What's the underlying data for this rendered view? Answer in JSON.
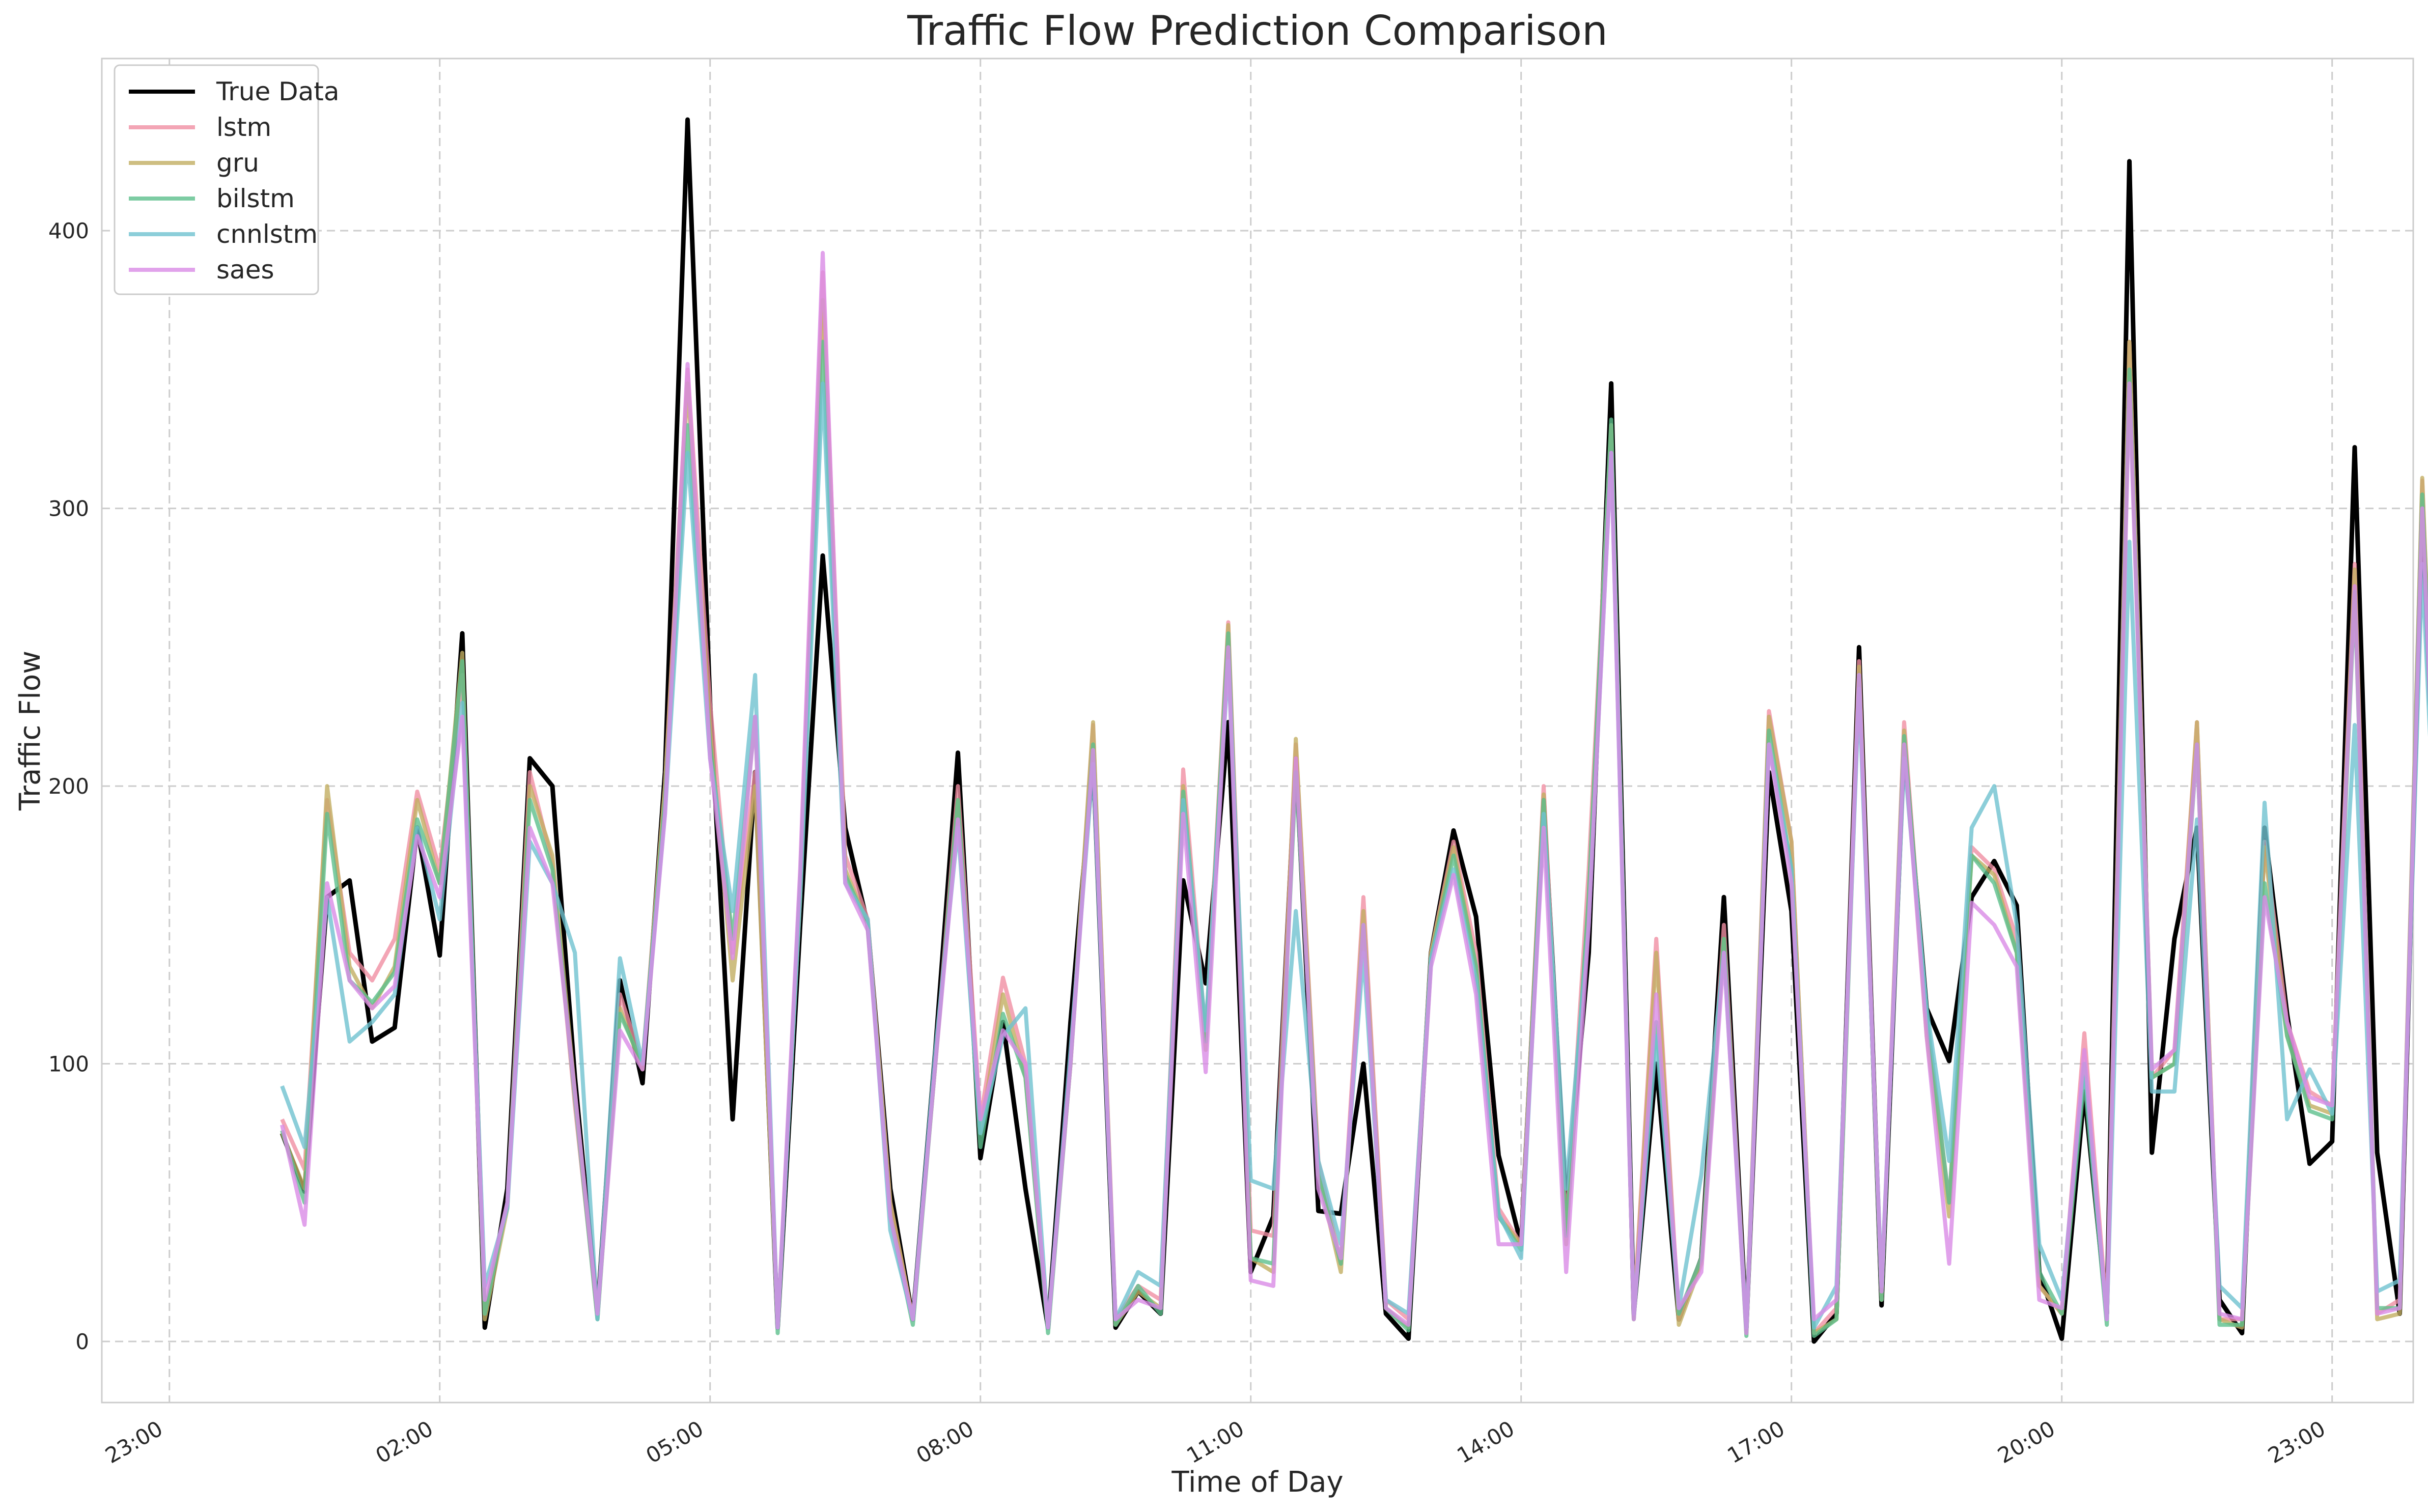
{
  "chart_data": {
    "type": "line",
    "title": "Traffic Flow Prediction Comparison",
    "xlabel": "Time of Day",
    "ylabel": "Traffic Flow",
    "xlim": [
      -0.75,
      24.9
    ],
    "ylim": [
      -22,
      462
    ],
    "x_ticks": [
      {
        "value": 0,
        "label": "23:00"
      },
      {
        "value": 3,
        "label": "02:00"
      },
      {
        "value": 6,
        "label": "05:00"
      },
      {
        "value": 9,
        "label": "08:00"
      },
      {
        "value": 12,
        "label": "11:00"
      },
      {
        "value": 15,
        "label": "14:00"
      },
      {
        "value": 18,
        "label": "17:00"
      },
      {
        "value": 21,
        "label": "20:00"
      },
      {
        "value": 24,
        "label": "23:00"
      }
    ],
    "y_ticks": [
      {
        "value": 0,
        "label": "0"
      },
      {
        "value": 100,
        "label": "100"
      },
      {
        "value": 200,
        "label": "200"
      },
      {
        "value": 300,
        "label": "300"
      },
      {
        "value": 400,
        "label": "400"
      }
    ],
    "grid": true,
    "legend_position": "top-left",
    "x_step": 0.25,
    "x_start": 1.25,
    "series": [
      {
        "name": "True Data",
        "color": "#000000",
        "values": [
          75,
          54,
          160,
          166,
          108,
          113,
          185,
          139,
          255,
          5,
          55,
          210,
          200,
          95,
          10,
          130,
          93,
          205,
          440,
          230,
          80,
          205,
          5,
          150,
          283,
          185,
          150,
          55,
          8,
          105,
          212,
          66,
          115,
          55,
          5,
          115,
          210,
          5,
          18,
          10,
          166,
          129,
          223,
          25,
          45,
          210,
          47,
          46,
          100,
          10,
          1,
          140,
          184,
          153,
          67,
          35,
          195,
          48,
          140,
          345,
          10,
          100,
          8,
          30,
          160,
          5,
          205,
          155,
          0,
          10,
          250,
          13,
          215,
          120,
          101,
          160,
          173,
          157,
          25,
          1,
          90,
          10,
          425,
          68,
          145,
          185,
          15,
          3,
          185,
          118,
          64,
          72,
          322,
          68,
          10,
          300,
          100
        ]
      },
      {
        "name": "lstm",
        "color": "#f08fa2",
        "values": [
          80,
          62,
          195,
          140,
          130,
          145,
          198,
          170,
          240,
          10,
          50,
          205,
          172,
          85,
          10,
          125,
          100,
          200,
          350,
          230,
          140,
          205,
          5,
          165,
          385,
          175,
          152,
          50,
          8,
          100,
          200,
          80,
          131,
          100,
          5,
          100,
          222,
          8,
          20,
          15,
          206,
          110,
          259,
          40,
          38,
          215,
          65,
          28,
          160,
          15,
          8,
          140,
          180,
          140,
          48,
          35,
          200,
          40,
          170,
          330,
          10,
          145,
          8,
          30,
          150,
          5,
          227,
          180,
          3,
          12,
          245,
          15,
          223,
          115,
          50,
          178,
          170,
          145,
          20,
          10,
          111,
          10,
          360,
          95,
          105,
          223,
          8,
          8,
          180,
          115,
          90,
          85,
          280,
          10,
          15,
          310,
          100
        ]
      },
      {
        "name": "gru",
        "color": "#c2ae62",
        "values": [
          75,
          55,
          200,
          135,
          120,
          135,
          195,
          165,
          248,
          8,
          48,
          200,
          175,
          90,
          8,
          120,
          98,
          200,
          345,
          220,
          130,
          200,
          5,
          160,
          375,
          170,
          150,
          50,
          8,
          100,
          195,
          75,
          125,
          95,
          5,
          100,
          223,
          6,
          18,
          12,
          200,
          105,
          258,
          30,
          25,
          217,
          60,
          25,
          155,
          12,
          5,
          140,
          178,
          135,
          45,
          35,
          197,
          35,
          160,
          330,
          8,
          140,
          6,
          28,
          145,
          3,
          225,
          180,
          3,
          8,
          243,
          15,
          220,
          110,
          45,
          175,
          168,
          140,
          20,
          10,
          100,
          8,
          360,
          95,
          100,
          223,
          8,
          5,
          178,
          110,
          85,
          82,
          278,
          8,
          10,
          311,
          100
        ]
      },
      {
        "name": "bilstm",
        "color": "#5dbf8c",
        "values": [
          76,
          50,
          190,
          130,
          122,
          133,
          188,
          165,
          245,
          10,
          50,
          195,
          170,
          88,
          8,
          118,
          100,
          195,
          330,
          215,
          145,
          225,
          3,
          165,
          360,
          168,
          150,
          45,
          6,
          100,
          195,
          70,
          118,
          95,
          3,
          100,
          215,
          6,
          20,
          10,
          198,
          108,
          255,
          30,
          28,
          205,
          60,
          28,
          150,
          12,
          4,
          138,
          175,
          135,
          45,
          33,
          195,
          38,
          160,
          332,
          8,
          115,
          10,
          30,
          145,
          2,
          220,
          170,
          2,
          8,
          240,
          15,
          218,
          118,
          50,
          175,
          165,
          140,
          25,
          10,
          95,
          6,
          350,
          95,
          100,
          215,
          6,
          6,
          165,
          110,
          83,
          80,
          270,
          12,
          12,
          305,
          100
        ]
      },
      {
        "name": "cnnlstm",
        "color": "#6fc2cf",
        "values": [
          92,
          70,
          160,
          108,
          115,
          125,
          185,
          152,
          230,
          20,
          48,
          180,
          165,
          140,
          8,
          138,
          100,
          190,
          320,
          210,
          155,
          240,
          5,
          160,
          345,
          165,
          152,
          40,
          8,
          105,
          185,
          75,
          110,
          120,
          5,
          105,
          208,
          8,
          25,
          20,
          195,
          112,
          245,
          58,
          55,
          155,
          65,
          35,
          140,
          15,
          10,
          138,
          170,
          130,
          46,
          30,
          190,
          55,
          150,
          320,
          10,
          110,
          12,
          60,
          140,
          5,
          215,
          170,
          5,
          20,
          235,
          20,
          210,
          120,
          65,
          185,
          200,
          150,
          35,
          15,
          100,
          8,
          288,
          90,
          90,
          188,
          20,
          12,
          194,
          80,
          98,
          82,
          222,
          18,
          22,
          280,
          100
        ]
      },
      {
        "name": "saes",
        "color": "#d98be6",
        "values": [
          78,
          42,
          165,
          130,
          120,
          128,
          182,
          160,
          225,
          15,
          50,
          185,
          165,
          90,
          10,
          112,
          98,
          190,
          352,
          210,
          138,
          225,
          5,
          170,
          392,
          165,
          148,
          45,
          8,
          100,
          188,
          80,
          112,
          100,
          5,
          100,
          213,
          8,
          15,
          12,
          190,
          97,
          250,
          22,
          20,
          210,
          55,
          30,
          150,
          12,
          6,
          135,
          168,
          125,
          35,
          35,
          185,
          25,
          150,
          320,
          8,
          125,
          12,
          25,
          140,
          3,
          215,
          165,
          8,
          15,
          240,
          18,
          215,
          110,
          28,
          158,
          150,
          135,
          15,
          12,
          105,
          8,
          345,
          98,
          105,
          215,
          10,
          8,
          160,
          115,
          88,
          85,
          272,
          10,
          12,
          300,
          100
        ]
      }
    ]
  }
}
